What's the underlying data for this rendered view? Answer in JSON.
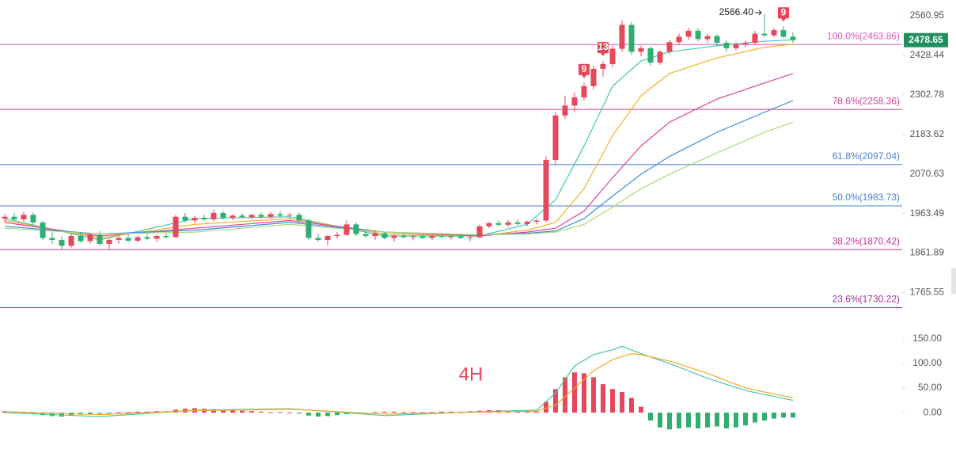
{
  "chart_data": {
    "type": "candlestick",
    "log": true,
    "ylim": [
      1700,
      2616
    ],
    "yticks": [
      2560.95,
      2428.44,
      2302.78,
      2183.62,
      2070.63,
      1963.49,
      1861.89,
      1765.55
    ],
    "up_color": "#e5485a",
    "down_color": "#2fae72",
    "ohlc": [
      [
        1950,
        1962,
        1940,
        1955
      ],
      [
        1955,
        1965,
        1945,
        1948
      ],
      [
        1948,
        1968,
        1942,
        1960
      ],
      [
        1960,
        1966,
        1935,
        1940
      ],
      [
        1940,
        1945,
        1895,
        1900
      ],
      [
        1900,
        1915,
        1885,
        1895
      ],
      [
        1895,
        1905,
        1870,
        1880
      ],
      [
        1880,
        1910,
        1875,
        1905
      ],
      [
        1905,
        1915,
        1888,
        1892
      ],
      [
        1892,
        1912,
        1886,
        1908
      ],
      [
        1908,
        1918,
        1880,
        1885
      ],
      [
        1885,
        1898,
        1872,
        1895
      ],
      [
        1895,
        1905,
        1885,
        1900
      ],
      [
        1900,
        1910,
        1890,
        1893
      ],
      [
        1893,
        1905,
        1888,
        1902
      ],
      [
        1902,
        1910,
        1894,
        1898
      ],
      [
        1898,
        1908,
        1890,
        1905
      ],
      [
        1905,
        1912,
        1898,
        1902
      ],
      [
        1902,
        1960,
        1900,
        1955
      ],
      [
        1955,
        1965,
        1940,
        1945
      ],
      [
        1945,
        1958,
        1938,
        1952
      ],
      [
        1952,
        1960,
        1944,
        1948
      ],
      [
        1948,
        1975,
        1942,
        1965
      ],
      [
        1965,
        1970,
        1948,
        1952
      ],
      [
        1952,
        1962,
        1946,
        1958
      ],
      [
        1958,
        1964,
        1950,
        1954
      ],
      [
        1954,
        1962,
        1948,
        1960
      ],
      [
        1960,
        1966,
        1950,
        1955
      ],
      [
        1955,
        1968,
        1950,
        1962
      ],
      [
        1962,
        1970,
        1952,
        1958
      ],
      [
        1958,
        1965,
        1950,
        1960
      ],
      [
        1960,
        1966,
        1940,
        1945
      ],
      [
        1945,
        1950,
        1895,
        1900
      ],
      [
        1900,
        1910,
        1890,
        1895
      ],
      [
        1895,
        1908,
        1880,
        1905
      ],
      [
        1905,
        1915,
        1898,
        1908
      ],
      [
        1908,
        1945,
        1905,
        1935
      ],
      [
        1935,
        1940,
        1905,
        1910
      ],
      [
        1910,
        1918,
        1900,
        1905
      ],
      [
        1905,
        1920,
        1895,
        1912
      ],
      [
        1912,
        1916,
        1896,
        1900
      ],
      [
        1900,
        1910,
        1890,
        1906
      ],
      [
        1906,
        1912,
        1898,
        1902
      ],
      [
        1902,
        1908,
        1894,
        1904
      ],
      [
        1904,
        1910,
        1898,
        1900
      ],
      [
        1900,
        1908,
        1895,
        1905
      ],
      [
        1905,
        1910,
        1898,
        1903
      ],
      [
        1903,
        1908,
        1896,
        1904
      ],
      [
        1904,
        1909,
        1897,
        1900
      ],
      [
        1900,
        1907,
        1892,
        1902
      ],
      [
        1902,
        1935,
        1898,
        1930
      ],
      [
        1930,
        1942,
        1925,
        1938
      ],
      [
        1938,
        1945,
        1930,
        1934
      ],
      [
        1934,
        1946,
        1928,
        1940
      ],
      [
        1940,
        1948,
        1932,
        1936
      ],
      [
        1936,
        1945,
        1930,
        1942
      ],
      [
        1942,
        1950,
        1935,
        1945
      ],
      [
        1945,
        2120,
        1940,
        2110
      ],
      [
        2110,
        2250,
        2095,
        2240
      ],
      [
        2240,
        2300,
        2230,
        2270
      ],
      [
        2270,
        2310,
        2250,
        2295
      ],
      [
        2295,
        2340,
        2285,
        2330
      ],
      [
        2330,
        2395,
        2320,
        2385
      ],
      [
        2385,
        2410,
        2360,
        2400
      ],
      [
        2400,
        2460,
        2390,
        2450
      ],
      [
        2450,
        2545,
        2440,
        2530
      ],
      [
        2530,
        2540,
        2430,
        2440
      ],
      [
        2440,
        2460,
        2425,
        2452
      ],
      [
        2452,
        2458,
        2395,
        2405
      ],
      [
        2405,
        2445,
        2398,
        2440
      ],
      [
        2440,
        2480,
        2432,
        2472
      ],
      [
        2472,
        2500,
        2462,
        2490
      ],
      [
        2490,
        2520,
        2480,
        2510
      ],
      [
        2510,
        2518,
        2475,
        2482
      ],
      [
        2482,
        2500,
        2470,
        2492
      ],
      [
        2492,
        2498,
        2460,
        2470
      ],
      [
        2470,
        2478,
        2440,
        2452
      ],
      [
        2452,
        2472,
        2445,
        2465
      ],
      [
        2465,
        2478,
        2455,
        2470
      ],
      [
        2470,
        2510,
        2465,
        2500
      ],
      [
        2500,
        2566.4,
        2488,
        2495
      ],
      [
        2495,
        2520,
        2488,
        2512
      ],
      [
        2512,
        2525,
        2485,
        2490
      ],
      [
        2490,
        2505,
        2470,
        2478.65
      ]
    ],
    "last_price": 2478.65,
    "last_price_color": "#1f8f5f",
    "fib_levels": [
      {
        "value": 2463.86,
        "label": "100.0%(2463.86)",
        "color": "#e056c0"
      },
      {
        "value": 2258.36,
        "label": "78.6%(2258.36)",
        "color": "#d0409a"
      },
      {
        "value": 2097.04,
        "label": "61.8%(2097.04)",
        "color": "#4a7fd0"
      },
      {
        "value": 1983.73,
        "label": "50.0%(1983.73)",
        "color": "#4a7fd0"
      },
      {
        "value": 1870.42,
        "label": "38.2%(1870.42)",
        "color": "#c0399a"
      },
      {
        "value": 1730.22,
        "label": "23.6%(1730.22)",
        "color": "#a0309a"
      }
    ],
    "moving_averages": [
      {
        "color": "#3cc8b4",
        "x": [
          0,
          10,
          20,
          30,
          40,
          50,
          55,
          58,
          61,
          64,
          67,
          70,
          75,
          80,
          83
        ],
        "values": [
          1950,
          1895,
          1950,
          1955,
          1905,
          1905,
          1935,
          2000,
          2150,
          2330,
          2410,
          2440,
          2460,
          2475,
          2480
        ]
      },
      {
        "color": "#f5b020",
        "x": [
          0,
          10,
          20,
          30,
          40,
          50,
          55,
          58,
          61,
          64,
          67,
          70,
          75,
          80,
          83
        ],
        "values": [
          1945,
          1900,
          1935,
          1950,
          1910,
          1905,
          1920,
          1940,
          2030,
          2180,
          2300,
          2370,
          2420,
          2455,
          2465
        ]
      },
      {
        "color": "#e0409a",
        "x": [
          0,
          10,
          20,
          30,
          40,
          50,
          55,
          58,
          61,
          64,
          67,
          70,
          75,
          80,
          83
        ],
        "values": [
          1940,
          1905,
          1925,
          1945,
          1915,
          1905,
          1915,
          1925,
          1970,
          2060,
          2150,
          2220,
          2290,
          2340,
          2370
        ]
      },
      {
        "color": "#3a8ee0",
        "x": [
          0,
          10,
          20,
          30,
          40,
          50,
          55,
          58,
          61,
          64,
          67,
          70,
          75,
          80,
          83
        ],
        "values": [
          1930,
          1910,
          1920,
          1940,
          1915,
          1908,
          1912,
          1918,
          1950,
          2010,
          2070,
          2120,
          2190,
          2250,
          2285
        ]
      },
      {
        "color": "#a8d878",
        "x": [
          0,
          10,
          20,
          30,
          40,
          50,
          55,
          58,
          61,
          64,
          67,
          70,
          75,
          80,
          83
        ],
        "values": [
          1925,
          1910,
          1915,
          1935,
          1915,
          1908,
          1910,
          1915,
          1935,
          1980,
          2030,
          2070,
          2130,
          2190,
          2220
        ]
      }
    ],
    "high_annotation": {
      "value": 2566.4,
      "label": "2566.40"
    },
    "td_marks": [
      {
        "x": 61,
        "count": 9
      },
      {
        "x": 63,
        "count": 13
      },
      {
        "x": 82,
        "count": 9
      }
    ],
    "timeframe": "4H",
    "macd": {
      "ylim": [
        -74,
        179
      ],
      "yticks": [
        {
          "value": 150,
          "label": "150.00"
        },
        {
          "value": 100,
          "label": "100.00"
        },
        {
          "value": 50,
          "label": "50.00"
        },
        {
          "value": 0,
          "label": "0.00"
        }
      ],
      "histogram": [
        3,
        2,
        1,
        -2,
        -5,
        -7,
        -8,
        -6,
        -4,
        -3,
        -2,
        -1,
        1,
        1,
        2,
        2,
        3,
        3,
        6,
        8,
        9,
        8,
        7,
        6,
        5,
        4,
        3,
        2,
        1,
        1,
        0,
        -2,
        -6,
        -8,
        -7,
        -5,
        -3,
        -2,
        -1,
        1,
        2,
        2,
        1,
        1,
        1,
        1,
        2,
        2,
        2,
        3,
        4,
        5,
        5,
        4,
        3,
        3,
        2,
        22,
        48,
        72,
        82,
        80,
        72,
        58,
        48,
        42,
        30,
        12,
        -16,
        -30,
        -34,
        -32,
        -30,
        -32,
        -30,
        -28,
        -32,
        -30,
        -26,
        -20,
        -16,
        -12,
        -10,
        -10
      ],
      "dif": {
        "color": "#45c6b0",
        "x": [
          0,
          10,
          20,
          30,
          40,
          50,
          56,
          58,
          60,
          62,
          64,
          65,
          67,
          70,
          74,
          78,
          83
        ],
        "values": [
          0,
          -8,
          5,
          8,
          -6,
          2,
          5,
          40,
          95,
          118,
          128,
          135,
          120,
          100,
          70,
          45,
          25
        ]
      },
      "dea": {
        "color": "#f5a623",
        "x": [
          0,
          10,
          20,
          30,
          40,
          50,
          56,
          58,
          60,
          62,
          64,
          66,
          67,
          70,
          74,
          78,
          83
        ],
        "values": [
          2,
          -4,
          4,
          7,
          -3,
          1,
          3,
          15,
          50,
          85,
          108,
          120,
          118,
          105,
          80,
          50,
          30
        ]
      }
    }
  }
}
